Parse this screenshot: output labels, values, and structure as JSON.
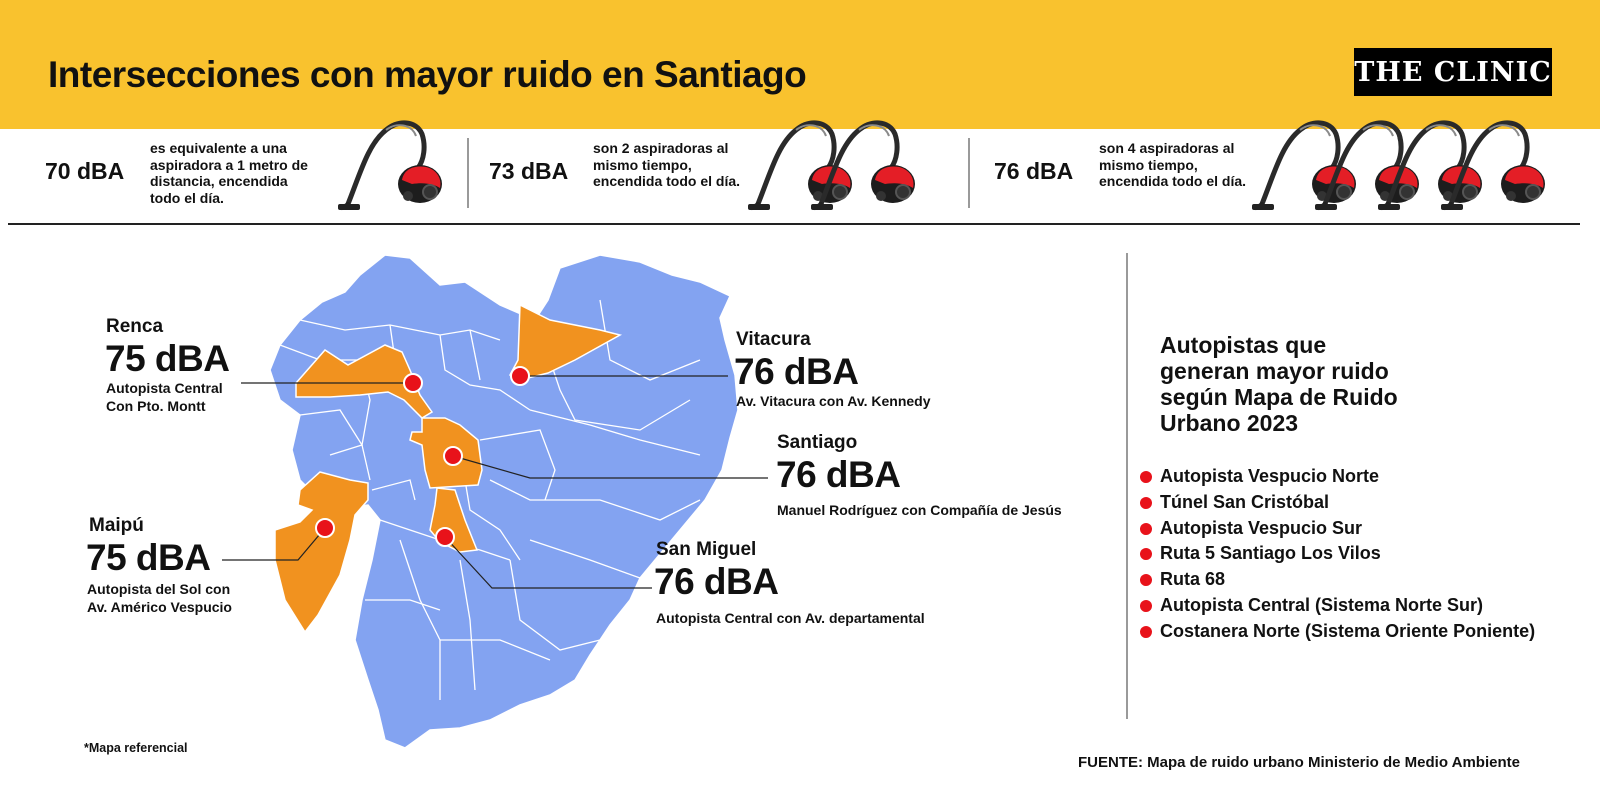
{
  "header": {
    "title": "Intersecciones con mayor ruido en Santiago",
    "logo": "THE CLINIC"
  },
  "strip": [
    {
      "db": "70 dBA",
      "lines": [
        "es equivalente a una",
        "aspiradora a 1 metro de",
        "distancia, encendida",
        "todo el día."
      ],
      "vacuums": 1
    },
    {
      "db": "73 dBA",
      "lines": [
        "son 2 aspiradoras al",
        "mismo tiempo,",
        "encendida todo el día."
      ],
      "vacuums": 2
    },
    {
      "db": "76 dBA",
      "lines": [
        "son 4 aspiradoras al",
        "mismo tiempo,",
        "encendida todo el día."
      ],
      "vacuums": 4
    }
  ],
  "locations": [
    {
      "name": "Renca",
      "db": "75 dBA",
      "desc": [
        "Autopista Central",
        "Con Pto. Montt"
      ]
    },
    {
      "name": "Vitacura",
      "db": "76 dBA",
      "desc": [
        "Av. Vitacura con Av. Kennedy"
      ]
    },
    {
      "name": "Santiago",
      "db": "76 dBA",
      "desc": [
        "Manuel Rodríguez con Compañía de Jesús"
      ]
    },
    {
      "name": "Maipú",
      "db": "75 dBA",
      "desc": [
        "Autopista del Sol con",
        "Av. Américo Vespucio"
      ]
    },
    {
      "name": "San Miguel",
      "db": "76 dBA",
      "desc": [
        "Autopista Central con Av. departamental"
      ]
    }
  ],
  "sidebar": {
    "title_lines": [
      "Autopistas que",
      "generan mayor ruido",
      "según Mapa de Ruido",
      "Urbano 2023"
    ],
    "items": [
      "Autopista Vespucio Norte",
      "Túnel San Cristóbal",
      "Autopista Vespucio Sur",
      "Ruta 5 Santiago Los Vilos",
      "Ruta 68",
      "Autopista Central (Sistema Norte Sur)",
      "Costanera Norte (Sistema Oriente Poniente)"
    ]
  },
  "note": "*Mapa referencial",
  "source": "FUENTE: Mapa de ruido urbano Ministerio de Medio Ambiente",
  "colors": {
    "header": "#f9c22e",
    "map_base": "#83a3f1",
    "map_highlight": "#f1921f",
    "marker": "#e8121a",
    "vacuum_body": "#e41e26"
  }
}
